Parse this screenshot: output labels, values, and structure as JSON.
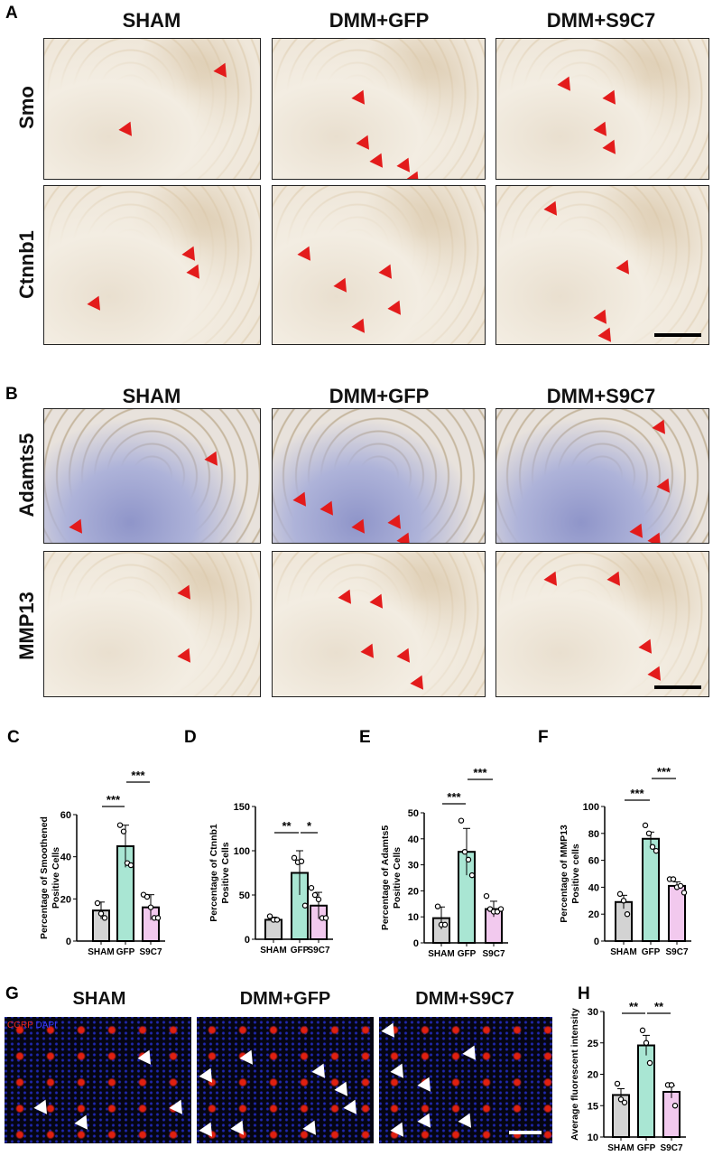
{
  "panels": {
    "A": "A",
    "B": "B",
    "C": "C",
    "D": "D",
    "E": "E",
    "F": "F",
    "G": "G",
    "H": "H"
  },
  "groups": [
    "SHAM",
    "DMM+GFP",
    "DMM+S9C7"
  ],
  "rows_A": [
    "Smo",
    "Ctnnb1"
  ],
  "rows_B": [
    "Adamts5",
    "MMP13"
  ],
  "legend_G": {
    "cgrp": "CGRP",
    "dapi": "DAPI",
    "cgrp_color": "#e8241a",
    "dapi_color": "#2a2ac8"
  },
  "colors": {
    "SHAM": "#d3d3d3",
    "GFP": "#a9e6d3",
    "S9C7": "#f2c9ee",
    "arrow": "#e31b1b"
  },
  "chart_data": [
    {
      "panel": "C",
      "type": "bar",
      "categories": [
        "SHAM",
        "GFP",
        "S9C7"
      ],
      "ylabel": "Percentage of Smoothened Positive Cells",
      "ylim": [
        0,
        60
      ],
      "yticks": [
        0,
        20,
        40,
        60
      ],
      "values": [
        14.5,
        45,
        16
      ],
      "errors": [
        4,
        10,
        6
      ],
      "points": [
        [
          18,
          13,
          11
        ],
        [
          55,
          52,
          37,
          36
        ],
        [
          22,
          21,
          16,
          11,
          11
        ]
      ],
      "significance": [
        {
          "from": "SHAM",
          "to": "GFP",
          "label": "***"
        },
        {
          "from": "GFP",
          "to": "S9C7",
          "label": "***"
        }
      ]
    },
    {
      "panel": "D",
      "type": "bar",
      "categories": [
        "SHAM",
        "GFP",
        "S9C7"
      ],
      "ylabel": "Percentage of Ctnnb1 Positive Cells",
      "ylim": [
        0,
        150
      ],
      "yticks": [
        0,
        50,
        100,
        150
      ],
      "values": [
        22,
        75,
        38
      ],
      "errors": [
        3,
        25,
        15
      ],
      "points": [
        [
          26,
          22,
          22
        ],
        [
          92,
          87,
          88,
          38
        ],
        [
          58,
          50,
          45,
          24,
          24
        ]
      ],
      "significance": [
        {
          "from": "SHAM",
          "to": "GFP",
          "label": "**"
        },
        {
          "from": "GFP",
          "to": "S9C7",
          "label": "*"
        }
      ]
    },
    {
      "panel": "E",
      "type": "bar",
      "categories": [
        "SHAM",
        "GFP",
        "S9C7"
      ],
      "ylabel": "Percentage of Adamts5 Positive Cells",
      "ylim": [
        0,
        50
      ],
      "yticks": [
        0,
        10,
        20,
        30,
        40,
        50
      ],
      "values": [
        9.5,
        35,
        13
      ],
      "errors": [
        4.3,
        9,
        3
      ],
      "points": [
        [
          14,
          7,
          7
        ],
        [
          47,
          35,
          32,
          26
        ],
        [
          18,
          13,
          12,
          12,
          13
        ]
      ],
      "significance": [
        {
          "from": "SHAM",
          "to": "GFP",
          "label": "***"
        },
        {
          "from": "GFP",
          "to": "S9C7",
          "label": "***"
        }
      ]
    },
    {
      "panel": "F",
      "type": "bar",
      "categories": [
        "SHAM",
        "GFP",
        "S9C7"
      ],
      "ylabel": "Percentage of MMP13 Positive cells",
      "ylim": [
        0,
        100
      ],
      "yticks": [
        0,
        20,
        40,
        60,
        80,
        100
      ],
      "values": [
        29,
        76,
        41
      ],
      "errors": [
        5,
        5,
        3
      ],
      "points": [
        [
          35,
          30,
          20
        ],
        [
          86,
          80,
          70,
          67
        ],
        [
          46,
          46,
          40,
          41,
          36
        ]
      ],
      "significance": [
        {
          "from": "SHAM",
          "to": "GFP",
          "label": "***"
        },
        {
          "from": "GFP",
          "to": "S9C7",
          "label": "***"
        }
      ]
    },
    {
      "panel": "H",
      "type": "bar",
      "categories": [
        "SHAM",
        "GFP",
        "S9C7"
      ],
      "ylabel": "Average fluorescent intensity",
      "ylim": [
        10,
        30
      ],
      "yticks": [
        10,
        15,
        20,
        25,
        30
      ],
      "values": [
        16.7,
        24.6,
        17.2
      ],
      "errors": [
        1,
        1.6,
        1
      ],
      "points": [
        [
          18.5,
          16,
          15.5
        ],
        [
          27,
          25,
          21.8
        ],
        [
          18.3,
          18.3,
          15
        ]
      ],
      "significance": [
        {
          "from": "SHAM",
          "to": "GFP",
          "label": "**"
        },
        {
          "from": "GFP",
          "to": "S9C7",
          "label": "**"
        }
      ]
    }
  ]
}
